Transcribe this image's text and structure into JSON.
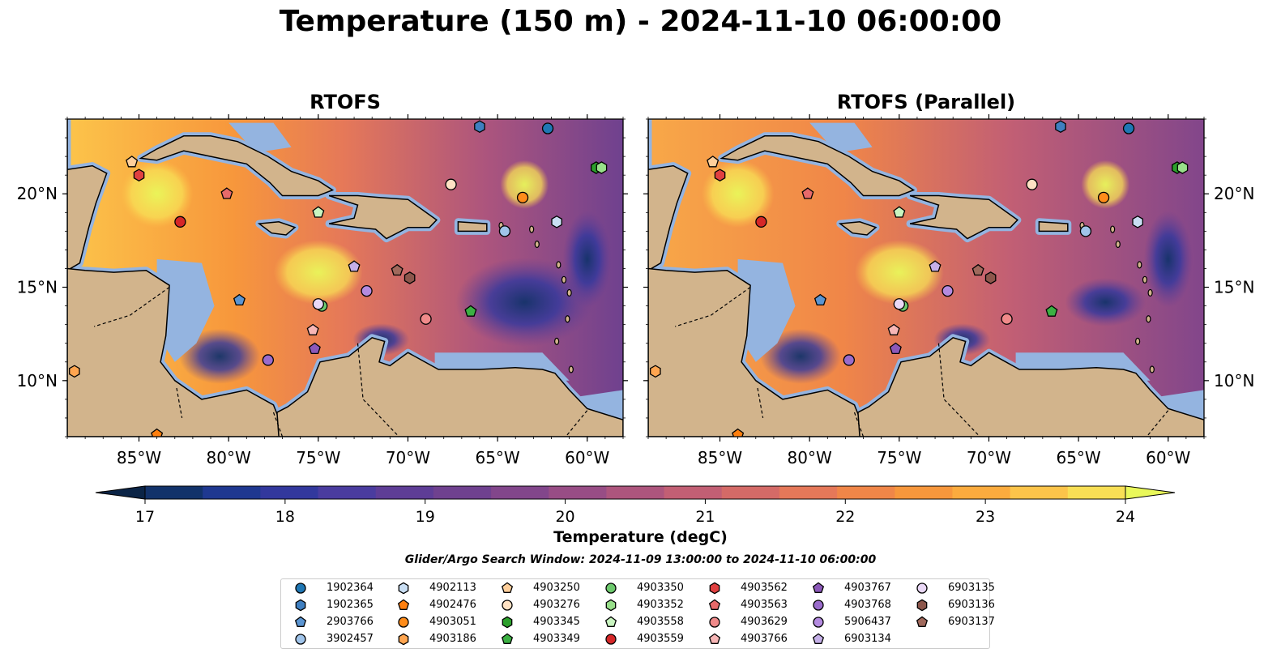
{
  "title": "Temperature (150 m) - 2024-11-10 06:00:00",
  "colors": {
    "land": "#d2b48c",
    "shelf": "#94b4e0",
    "deep_cold": "#071f35"
  },
  "chart_data": [
    {
      "type": "heatmap",
      "title": "RTOFS",
      "lon_range": [
        -89,
        -58
      ],
      "lat_range": [
        7,
        24
      ],
      "xticks": [
        "85°W",
        "80°W",
        "75°W",
        "70°W",
        "65°W",
        "60°W"
      ],
      "yticks": [
        "20°N",
        "15°N",
        "10°N"
      ]
    },
    {
      "type": "heatmap",
      "title": "RTOFS (Parallel)",
      "lon_range": [
        -89,
        -58
      ],
      "lat_range": [
        7,
        24
      ],
      "xticks": [
        "85°W",
        "80°W",
        "75°W",
        "70°W",
        "65°W",
        "60°W"
      ],
      "yticks": [
        "20°N",
        "15°N",
        "10°N"
      ]
    }
  ],
  "colorbar": {
    "label": "Temperature (degC)",
    "vmin": 16.5,
    "vmax": 24.5,
    "step": 0.5,
    "tick_values": [
      17,
      18,
      19,
      20,
      21,
      22,
      23,
      24
    ],
    "tick_labels": [
      "17",
      "18",
      "19",
      "20",
      "21",
      "22",
      "23",
      "24"
    ],
    "extend": "both",
    "colors": [
      "#0b2446",
      "#12326a",
      "#1f3890",
      "#32389d",
      "#4a3c9f",
      "#5e3d96",
      "#6f418f",
      "#82468b",
      "#984d85",
      "#ad557d",
      "#c25f74",
      "#d46a67",
      "#e57859",
      "#f08648",
      "#f7973c",
      "#fbab3e",
      "#fcc44a",
      "#f8df55",
      "#e9f85a"
    ]
  },
  "search_window": "Glider/Argo Search Window: 2024-11-09 13:00:00 to 2024-11-10 06:00:00",
  "legend": [
    {
      "label": "1902364",
      "marker": "circle",
      "color": "#1f77b4"
    },
    {
      "label": "1902365",
      "marker": "hexagon",
      "color": "#3f7fc0"
    },
    {
      "label": "2903766",
      "marker": "pentagon",
      "color": "#5b95d2"
    },
    {
      "label": "3902457",
      "marker": "circle",
      "color": "#a0c4ea"
    },
    {
      "label": "4902113",
      "marker": "hexagon",
      "color": "#c9def3"
    },
    {
      "label": "4902476",
      "marker": "pentagon",
      "color": "#ff7f0e"
    },
    {
      "label": "4903051",
      "marker": "circle",
      "color": "#ff8c1a"
    },
    {
      "label": "4903186",
      "marker": "hexagon",
      "color": "#ffa550"
    },
    {
      "label": "4903250",
      "marker": "pentagon",
      "color": "#ffcf9b"
    },
    {
      "label": "4903276",
      "marker": "circle",
      "color": "#ffe2c4"
    },
    {
      "label": "4903345",
      "marker": "hexagon",
      "color": "#2ca02c"
    },
    {
      "label": "4903349",
      "marker": "pentagon",
      "color": "#3cb043"
    },
    {
      "label": "4903350",
      "marker": "circle",
      "color": "#6dc96d"
    },
    {
      "label": "4903352",
      "marker": "hexagon",
      "color": "#98df8a"
    },
    {
      "label": "4903558",
      "marker": "pentagon",
      "color": "#c9f5c0"
    },
    {
      "label": "4903559",
      "marker": "circle",
      "color": "#d62728"
    },
    {
      "label": "4903562",
      "marker": "hexagon",
      "color": "#e04040"
    },
    {
      "label": "4903563",
      "marker": "pentagon",
      "color": "#e86a6a"
    },
    {
      "label": "4903629",
      "marker": "circle",
      "color": "#f08a8a"
    },
    {
      "label": "4903766",
      "marker": "pentagon",
      "color": "#f7b6b6"
    },
    {
      "label": "4903767",
      "marker": "pentagon",
      "color": "#8b58b8"
    },
    {
      "label": "4903768",
      "marker": "circle",
      "color": "#9a6ccb"
    },
    {
      "label": "5906437",
      "marker": "circle",
      "color": "#b48be0"
    },
    {
      "label": "6903134",
      "marker": "pentagon",
      "color": "#c5b0e8"
    },
    {
      "label": "6903135",
      "marker": "circle",
      "color": "#ead8f6"
    },
    {
      "label": "6903136",
      "marker": "hexagon",
      "color": "#8c564b"
    },
    {
      "label": "6903137",
      "marker": "pentagon",
      "color": "#a0695c"
    }
  ],
  "floats": [
    {
      "id": "1902364",
      "lon": -62.2,
      "lat": 23.5
    },
    {
      "id": "1902365",
      "lon": -66.0,
      "lat": 23.6
    },
    {
      "id": "2903766",
      "lon": -79.4,
      "lat": 14.3
    },
    {
      "id": "3902457",
      "lon": -64.6,
      "lat": 18.0
    },
    {
      "id": "4902113",
      "lon": -61.7,
      "lat": 18.5
    },
    {
      "id": "4902476",
      "lon": -84.0,
      "lat": 7.1
    },
    {
      "id": "4903051",
      "lon": -63.6,
      "lat": 19.8
    },
    {
      "id": "4903186",
      "lon": -88.6,
      "lat": 10.5
    },
    {
      "id": "4903250",
      "lon": -85.4,
      "lat": 21.7
    },
    {
      "id": "4903276",
      "lon": -67.6,
      "lat": 20.5
    },
    {
      "id": "4903345",
      "lon": -59.5,
      "lat": 21.4
    },
    {
      "id": "4903349",
      "lon": -66.5,
      "lat": 13.7
    },
    {
      "id": "4903350",
      "lon": -74.8,
      "lat": 14.0
    },
    {
      "id": "4903352",
      "lon": -59.2,
      "lat": 21.4
    },
    {
      "id": "4903558",
      "lon": -75.0,
      "lat": 19.0
    },
    {
      "id": "4903559",
      "lon": -82.7,
      "lat": 18.5
    },
    {
      "id": "4903562",
      "lon": -85.0,
      "lat": 21.0
    },
    {
      "id": "4903563",
      "lon": -80.1,
      "lat": 20.0
    },
    {
      "id": "4903629",
      "lon": -69.0,
      "lat": 13.3
    },
    {
      "id": "4903766",
      "lon": -75.3,
      "lat": 12.7
    },
    {
      "id": "4903767",
      "lon": -75.2,
      "lat": 11.7
    },
    {
      "id": "4903768",
      "lon": -77.8,
      "lat": 11.1
    },
    {
      "id": "5906437",
      "lon": -72.3,
      "lat": 14.8
    },
    {
      "id": "6903134",
      "lon": -73.0,
      "lat": 16.1
    },
    {
      "id": "6903135",
      "lon": -75.0,
      "lat": 14.1
    },
    {
      "id": "6903136",
      "lon": -69.9,
      "lat": 15.5
    },
    {
      "id": "6903137",
      "lon": -70.6,
      "lat": 15.9
    }
  ]
}
